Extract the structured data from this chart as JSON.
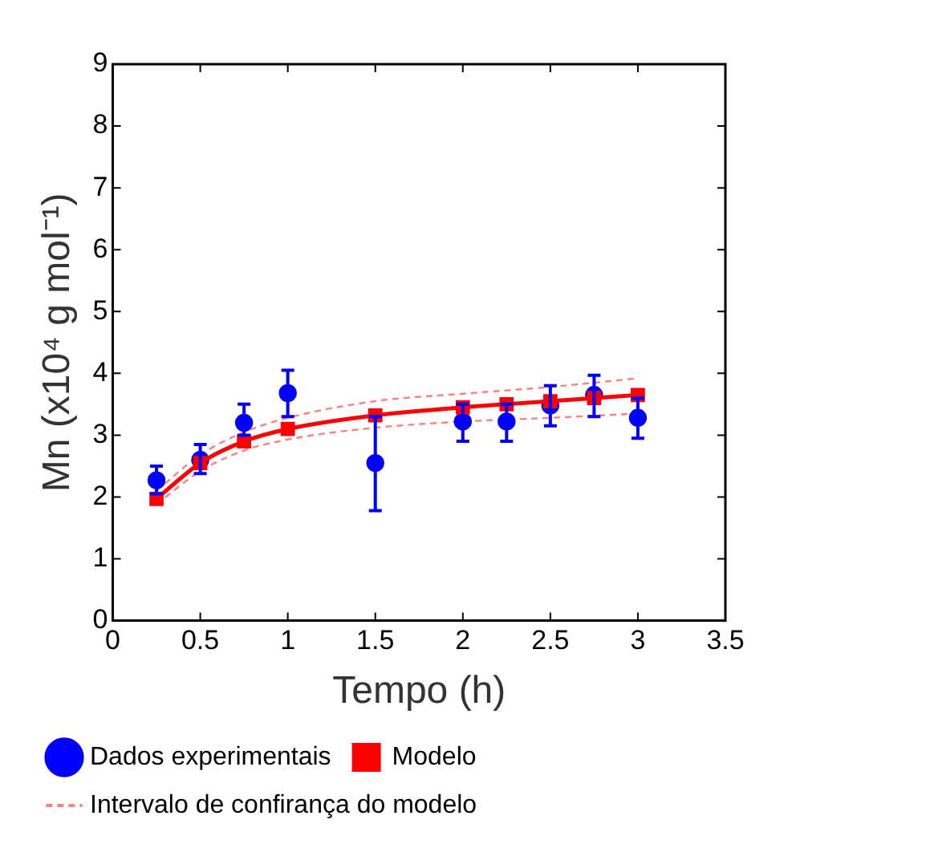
{
  "chart_data": {
    "type": "scatter",
    "xlabel": "Tempo (h)",
    "ylabel": "Mn (x10⁴ g mol⁻¹)",
    "xlim": [
      0,
      3.5
    ],
    "xticks": [
      0,
      0.5,
      1,
      1.5,
      2,
      2.5,
      3,
      3.5
    ],
    "ylim": [
      0,
      9
    ],
    "yticks": [
      0,
      1,
      2,
      3,
      4,
      5,
      6,
      7,
      8,
      9
    ],
    "grid": false,
    "legend": "bottom",
    "series": [
      {
        "name": "Dados experimentais",
        "type": "scatter",
        "marker": "circle",
        "color": "#0000ff",
        "x": [
          0.25,
          0.5,
          0.75,
          1,
          1.5,
          2,
          2.25,
          2.5,
          2.75,
          3
        ],
        "values": [
          2.27,
          2.6,
          3.2,
          3.68,
          2.55,
          3.22,
          3.22,
          3.48,
          3.65,
          3.28
        ],
        "errors": [
          [
            2.05,
            2.5
          ],
          [
            2.38,
            2.85
          ],
          [
            3.0,
            3.5
          ],
          [
            3.3,
            4.05
          ],
          [
            1.78,
            3.3
          ],
          [
            2.9,
            3.5
          ],
          [
            2.9,
            3.5
          ],
          [
            3.15,
            3.8
          ],
          [
            3.3,
            3.97
          ],
          [
            2.95,
            3.6
          ]
        ]
      },
      {
        "name": "Modelo",
        "type": "line",
        "marker": "square",
        "line_style": "solid",
        "color": "#ff0000",
        "x": [
          0.25,
          0.5,
          0.75,
          1,
          1.5,
          2,
          2.25,
          2.5,
          2.75,
          3
        ],
        "values": [
          1.97,
          2.55,
          2.9,
          3.1,
          3.32,
          3.45,
          3.5,
          3.55,
          3.6,
          3.65
        ]
      },
      {
        "name": "Intervalo de confirança do modelo",
        "type": "line",
        "marker": "none",
        "line_style": "dashed",
        "color": "#ff8080",
        "x": [
          0.25,
          0.5,
          0.75,
          1,
          1.5,
          2,
          2.5,
          3
        ],
        "values": [
          2.1,
          2.68,
          3.05,
          3.28,
          3.55,
          3.67,
          3.78,
          3.92
        ]
      },
      {
        "type": "line",
        "marker": "none",
        "line_style": "dashed",
        "color": "#ff8080",
        "x": [
          0.25,
          0.5,
          0.75,
          1,
          1.5,
          2,
          2.5,
          3
        ],
        "values": [
          1.88,
          2.42,
          2.75,
          2.93,
          3.12,
          3.22,
          3.28,
          3.35
        ]
      }
    ]
  }
}
